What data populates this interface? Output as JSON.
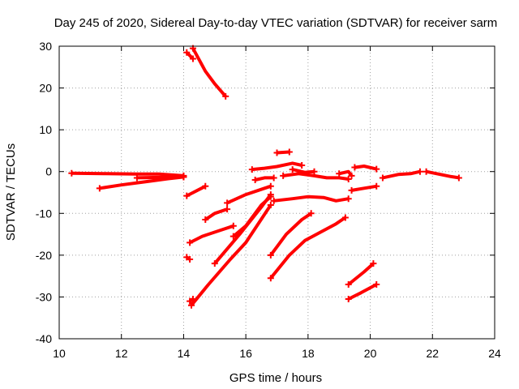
{
  "chart_data": {
    "type": "scatter",
    "title": "Day 245 of 2020, Sidereal Day-to-day VTEC variation (SDTVAR) for receiver sarm",
    "xlabel": "GPS time / hours",
    "ylabel": "SDTVAR / TECUs",
    "xlim": [
      10,
      24
    ],
    "ylim": [
      -40,
      30
    ],
    "xticks": [
      "10",
      "12",
      "14",
      "16",
      "18",
      "20",
      "22",
      "24"
    ],
    "yticks": [
      "30",
      "20",
      "10",
      "0",
      "-10",
      "-20",
      "-30",
      "-40"
    ],
    "grid": true,
    "color": "#ff0000",
    "marker": "plus",
    "segments": [
      [
        [
          10.4,
          -0.4
        ],
        [
          11.5,
          -0.5
        ],
        [
          12.5,
          -0.6
        ],
        [
          13.2,
          -0.6
        ],
        [
          14.0,
          -1.0
        ]
      ],
      [
        [
          11.3,
          -4.0
        ],
        [
          12.0,
          -3.2
        ],
        [
          12.8,
          -2.4
        ],
        [
          13.5,
          -1.7
        ],
        [
          14.0,
          -1.3
        ]
      ],
      [
        [
          12.5,
          -1.5
        ],
        [
          13.2,
          -1.4
        ],
        [
          14.0,
          -1.3
        ]
      ],
      [
        [
          14.1,
          28.5
        ],
        [
          14.3,
          27.0
        ]
      ],
      [
        [
          14.3,
          29.5
        ],
        [
          14.7,
          24.0
        ],
        [
          15.0,
          21.0
        ],
        [
          15.35,
          18.0
        ]
      ],
      [
        [
          14.1,
          -5.8
        ],
        [
          14.7,
          -3.5
        ]
      ],
      [
        [
          14.1,
          -20.5
        ],
        [
          14.2,
          -21.0
        ]
      ],
      [
        [
          14.2,
          -31.0
        ],
        [
          14.3,
          -30.5
        ]
      ],
      [
        [
          14.25,
          -32.0
        ],
        [
          14.8,
          -27.0
        ],
        [
          15.5,
          -21.0
        ],
        [
          16.0,
          -17.0
        ],
        [
          16.8,
          -8.0
        ]
      ],
      [
        [
          14.2,
          -17.0
        ],
        [
          14.6,
          -15.5
        ],
        [
          15.2,
          -14.0
        ],
        [
          15.6,
          -13.0
        ]
      ],
      [
        [
          14.7,
          -11.5
        ],
        [
          15.0,
          -10.0
        ],
        [
          15.4,
          -9.0
        ]
      ],
      [
        [
          15.0,
          -22.0
        ],
        [
          15.8,
          -15.0
        ],
        [
          16.5,
          -8.5
        ],
        [
          16.8,
          -5.5
        ]
      ],
      [
        [
          15.6,
          -15.5
        ],
        [
          16.0,
          -13.0
        ],
        [
          16.5,
          -8.0
        ],
        [
          16.8,
          -6.0
        ]
      ],
      [
        [
          15.4,
          -7.5
        ],
        [
          16.0,
          -5.5
        ],
        [
          16.6,
          -4.0
        ],
        [
          16.8,
          -3.5
        ]
      ],
      [
        [
          16.3,
          -2.0
        ],
        [
          16.6,
          -1.5
        ],
        [
          16.9,
          -1.5
        ]
      ],
      [
        [
          16.2,
          0.5
        ],
        [
          16.6,
          0.8
        ],
        [
          17.0,
          1.2
        ],
        [
          17.5,
          2.0
        ],
        [
          17.8,
          1.5
        ]
      ],
      [
        [
          17.0,
          4.5
        ],
        [
          17.4,
          4.7
        ]
      ],
      [
        [
          16.9,
          -7.0
        ],
        [
          17.5,
          -6.5
        ],
        [
          18.0,
          -6.0
        ],
        [
          18.5,
          -6.2
        ],
        [
          18.9,
          -7.0
        ],
        [
          19.3,
          -6.5
        ]
      ],
      [
        [
          17.2,
          -1.0
        ],
        [
          17.7,
          -0.5
        ],
        [
          18.2,
          -1.0
        ],
        [
          18.6,
          -1.5
        ],
        [
          19.0,
          -1.5
        ],
        [
          19.3,
          -1.8
        ]
      ],
      [
        [
          17.5,
          0.5
        ],
        [
          17.9,
          -0.2
        ],
        [
          18.2,
          0.0
        ]
      ],
      [
        [
          16.8,
          -20.0
        ],
        [
          17.3,
          -15.0
        ],
        [
          17.8,
          -11.5
        ],
        [
          18.1,
          -10.0
        ]
      ],
      [
        [
          16.8,
          -25.5
        ],
        [
          17.4,
          -20.0
        ],
        [
          17.9,
          -16.5
        ],
        [
          18.4,
          -14.5
        ],
        [
          18.9,
          -12.5
        ],
        [
          19.2,
          -11.0
        ]
      ],
      [
        [
          19.0,
          -0.5
        ],
        [
          19.3,
          0.0
        ],
        [
          19.4,
          -1.0
        ]
      ],
      [
        [
          19.4,
          -4.5
        ],
        [
          19.8,
          -4.0
        ],
        [
          20.2,
          -3.5
        ]
      ],
      [
        [
          19.5,
          1.0
        ],
        [
          19.8,
          1.3
        ],
        [
          20.2,
          0.6
        ]
      ],
      [
        [
          19.3,
          -27.0
        ],
        [
          19.8,
          -24.0
        ],
        [
          20.1,
          -22.0
        ]
      ],
      [
        [
          19.3,
          -30.5
        ],
        [
          19.7,
          -29.0
        ],
        [
          20.2,
          -27.0
        ]
      ],
      [
        [
          20.4,
          -1.5
        ],
        [
          20.9,
          -0.7
        ],
        [
          21.3,
          -0.5
        ],
        [
          21.6,
          0.0
        ]
      ],
      [
        [
          21.8,
          0.0
        ],
        [
          22.2,
          -0.6
        ],
        [
          22.6,
          -1.2
        ],
        [
          22.85,
          -1.5
        ]
      ]
    ]
  }
}
